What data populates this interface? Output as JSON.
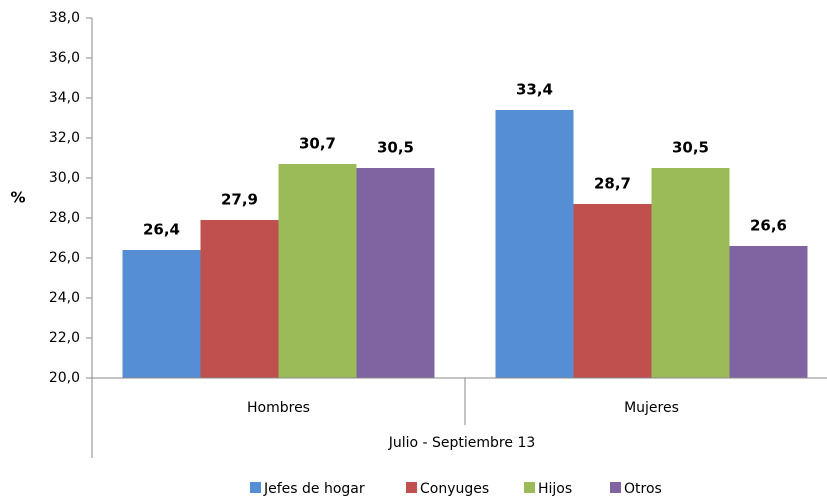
{
  "chart_data": {
    "type": "bar",
    "y_label": "%",
    "x_label": "Julio - Septiembre 13",
    "categories": [
      "Hombres",
      "Mujeres"
    ],
    "series": [
      {
        "name": "Jefes de hogar",
        "color": "#558ed5",
        "values": [
          26.4,
          33.4
        ],
        "value_labels": [
          "26,4",
          "33,4"
        ]
      },
      {
        "name": "Conyuges",
        "color": "#c0504d",
        "values": [
          27.9,
          28.7
        ],
        "value_labels": [
          "27,9",
          "28,7"
        ]
      },
      {
        "name": "Hijos",
        "color": "#9bbb59",
        "values": [
          30.7,
          30.5
        ],
        "value_labels": [
          "30,7",
          "30,5"
        ]
      },
      {
        "name": "Otros",
        "color": "#8064a2",
        "values": [
          30.5,
          26.6
        ],
        "value_labels": [
          "30,5",
          "26,6"
        ]
      }
    ],
    "ylim": [
      20,
      38
    ],
    "yticks": [
      {
        "value": 20,
        "label": "20,0"
      },
      {
        "value": 22,
        "label": "22,0"
      },
      {
        "value": 24,
        "label": "24,0"
      },
      {
        "value": 26,
        "label": "26,0"
      },
      {
        "value": 28,
        "label": "28,0"
      },
      {
        "value": 30,
        "label": "30,0"
      },
      {
        "value": 32,
        "label": "32,0"
      },
      {
        "value": 34,
        "label": "34,0"
      },
      {
        "value": 36,
        "label": "36,0"
      },
      {
        "value": 38,
        "label": "38,0"
      }
    ],
    "legend": "bottom"
  }
}
